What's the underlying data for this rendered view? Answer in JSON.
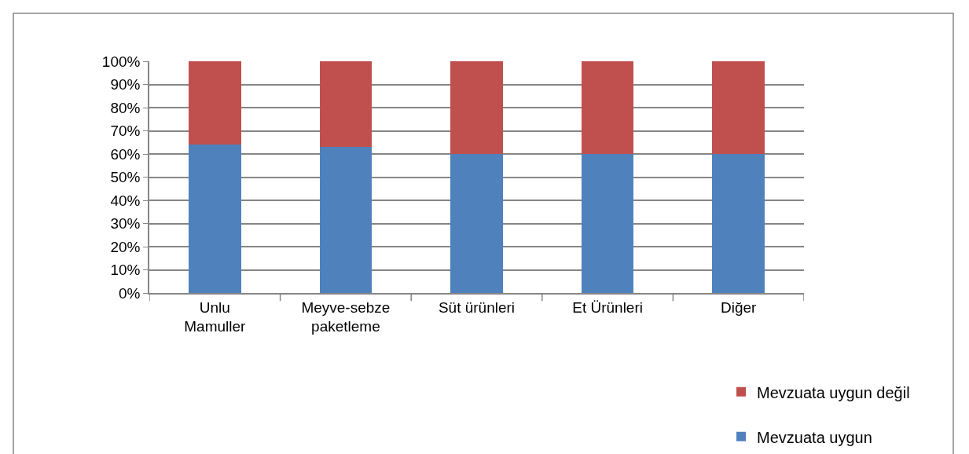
{
  "chart_data": {
    "type": "bar",
    "stacked": true,
    "categories": [
      "Unlu Mamuller",
      "Meyve-sebze paketleme",
      "Süt ürünleri",
      "Et Ürünleri",
      "Diğer"
    ],
    "series": [
      {
        "name": "Mevzuata uygun",
        "color": "#4f81bd",
        "values": [
          64,
          63,
          60,
          60,
          60
        ]
      },
      {
        "name": "Mevzuata uygun değil",
        "color": "#c0504d",
        "values": [
          36,
          37,
          40,
          40,
          40
        ]
      }
    ],
    "ylim": [
      0,
      100
    ],
    "yticks": [
      {
        "value": 0,
        "label": "0%"
      },
      {
        "value": 10,
        "label": "10%"
      },
      {
        "value": 20,
        "label": "20%"
      },
      {
        "value": 30,
        "label": "30%"
      },
      {
        "value": 40,
        "label": "40%"
      },
      {
        "value": 50,
        "label": "50%"
      },
      {
        "value": 60,
        "label": "60%"
      },
      {
        "value": 70,
        "label": "70%"
      },
      {
        "value": 80,
        "label": "80%"
      },
      {
        "value": 90,
        "label": "90%"
      },
      {
        "value": 100,
        "label": "100%"
      }
    ],
    "grid": "y",
    "legend": "bottom right"
  }
}
